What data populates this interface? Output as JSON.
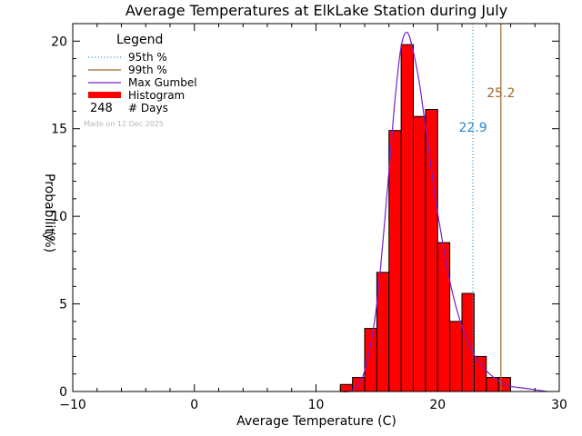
{
  "chart_data": {
    "type": "bar",
    "title": "Average Temperatures at ElkLake Station during July",
    "xlabel": "Average Temperature (C)",
    "ylabel": "Probability",
    "ylabel_unit": "(%)",
    "xlim": [
      -10,
      30
    ],
    "ylim": [
      0,
      21
    ],
    "x_ticks": [
      -10,
      0,
      10,
      20,
      30
    ],
    "y_ticks": [
      0,
      5,
      10,
      15,
      20
    ],
    "x_tick_labels": [
      "−10",
      "0",
      "10",
      "20",
      "30"
    ],
    "y_tick_labels": [
      "0",
      "5",
      "10",
      "15",
      "20"
    ],
    "legend": {
      "title": "Legend",
      "items": [
        {
          "label": "95th %",
          "style": "dotted",
          "color": "#2a89c9"
        },
        {
          "label": "99th %",
          "style": "solid",
          "color": "#a0672b"
        },
        {
          "label": "Max Gumbel",
          "style": "solid",
          "color": "#7a1fd1"
        },
        {
          "label": "Histogram",
          "style": "thick",
          "color": "#ff0000"
        }
      ],
      "days_count": "248",
      "days_label": "# Days"
    },
    "made_on": "Made on 12 Dec 2025",
    "histogram": {
      "bin_width": 1,
      "bins": [
        {
          "x0": 12,
          "value": 0.4
        },
        {
          "x0": 13,
          "value": 0.8
        },
        {
          "x0": 14,
          "value": 3.6
        },
        {
          "x0": 15,
          "value": 6.8
        },
        {
          "x0": 16,
          "value": 14.9
        },
        {
          "x0": 17,
          "value": 19.8
        },
        {
          "x0": 18,
          "value": 15.7
        },
        {
          "x0": 19,
          "value": 16.1
        },
        {
          "x0": 20,
          "value": 8.5
        },
        {
          "x0": 21,
          "value": 4.0
        },
        {
          "x0": 22,
          "value": 5.6
        },
        {
          "x0": 23,
          "value": 2.0
        },
        {
          "x0": 24,
          "value": 0.8
        },
        {
          "x0": 25,
          "value": 0.8
        }
      ],
      "color": "#ff0000"
    },
    "gumbel": {
      "color": "#7a1fd1",
      "x": [
        12.0,
        13.0,
        14.0,
        15.0,
        16.0,
        16.5,
        17.0,
        17.5,
        18.0,
        18.5,
        19.0,
        19.5,
        20.0,
        21.0,
        22.0,
        23.0,
        24.0,
        25.0,
        26.0,
        27.0,
        28.0,
        29.0
      ],
      "y": [
        0.0,
        0.1,
        1.2,
        5.0,
        12.6,
        16.7,
        19.7,
        20.5,
        19.4,
        17.6,
        15.1,
        12.6,
        10.2,
        6.3,
        3.7,
        2.1,
        1.2,
        0.6,
        0.3,
        0.2,
        0.1,
        0.0
      ]
    },
    "percentiles": [
      {
        "name": "95th %",
        "value": 22.9,
        "label": "22.9",
        "color": "#2a89c9",
        "style": "dotted"
      },
      {
        "name": "99th %",
        "value": 25.2,
        "label": "25.2",
        "color": "#a0672b",
        "style": "solid"
      }
    ]
  }
}
